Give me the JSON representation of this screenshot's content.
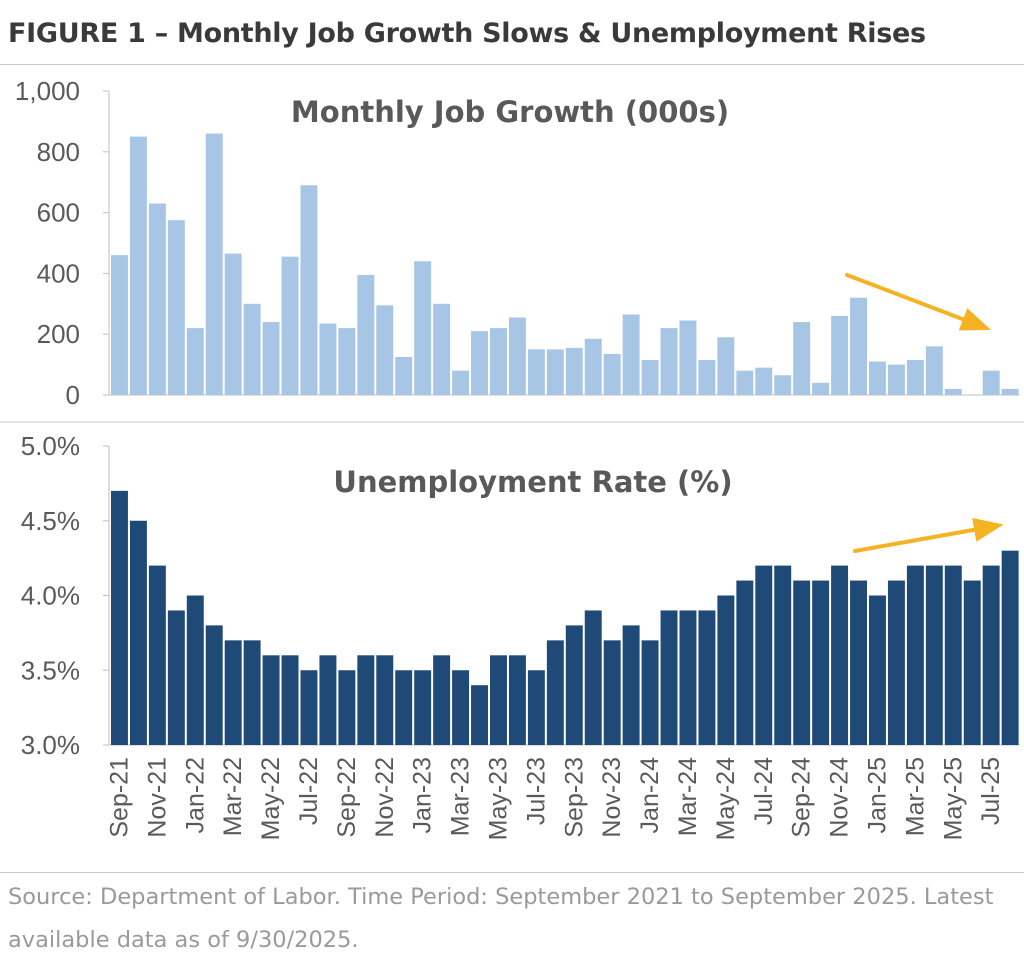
{
  "figure_title": "FIGURE 1 – Monthly Job Growth Slows & Unemployment Rises",
  "source_text": "Source: Department of Labor. Time Period: September 2021 to September 2025. Latest available data as of 9/30/2025.",
  "colors": {
    "jobs_bar": "#a7c6e6",
    "unemp_bar": "#1f4a78",
    "arrow": "#f5b324",
    "axis_text": "#5a5a5a",
    "title_text": "#595959"
  },
  "x_tick_labels": [
    "Sep-21",
    "Nov-21",
    "Jan-22",
    "Mar-22",
    "May-22",
    "Jul-22",
    "Sep-22",
    "Nov-22",
    "Jan-23",
    "Mar-23",
    "May-23",
    "Jul-23",
    "Sep-23",
    "Nov-23",
    "Jan-24",
    "Mar-24",
    "May-24",
    "Jul-24",
    "Sep-24",
    "Nov-24",
    "Jan-25",
    "Mar-25",
    "May-25",
    "Jul-25"
  ],
  "chart_data": [
    {
      "type": "bar",
      "title": "Monthly Job Growth (000s)",
      "ylim": [
        0,
        1000
      ],
      "yticks": [
        "0",
        "200",
        "400",
        "600",
        "800",
        "1,000"
      ],
      "annotation": "arrow-down-right",
      "values": [
        460,
        850,
        630,
        575,
        220,
        860,
        465,
        300,
        240,
        455,
        690,
        235,
        220,
        395,
        295,
        125,
        440,
        300,
        80,
        210,
        220,
        255,
        150,
        150,
        155,
        185,
        135,
        265,
        115,
        220,
        245,
        115,
        190,
        80,
        90,
        65,
        240,
        40,
        260,
        320,
        110,
        100,
        115,
        160,
        20,
        0,
        80,
        20
      ]
    },
    {
      "type": "bar",
      "title": "Unemployment Rate (%)",
      "ylim": [
        3.0,
        5.0
      ],
      "yticks": [
        "3.0%",
        "3.5%",
        "4.0%",
        "4.5%",
        "5.0%"
      ],
      "annotation": "arrow-up-right",
      "values": [
        4.7,
        4.5,
        4.2,
        3.9,
        4.0,
        3.8,
        3.7,
        3.7,
        3.6,
        3.6,
        3.5,
        3.6,
        3.5,
        3.6,
        3.6,
        3.5,
        3.5,
        3.6,
        3.5,
        3.4,
        3.6,
        3.6,
        3.5,
        3.7,
        3.8,
        3.9,
        3.7,
        3.8,
        3.7,
        3.9,
        3.9,
        3.9,
        4.0,
        4.1,
        4.2,
        4.2,
        4.1,
        4.1,
        4.2,
        4.1,
        4.0,
        4.1,
        4.2,
        4.2,
        4.2,
        4.1,
        4.2,
        4.3
      ]
    }
  ]
}
